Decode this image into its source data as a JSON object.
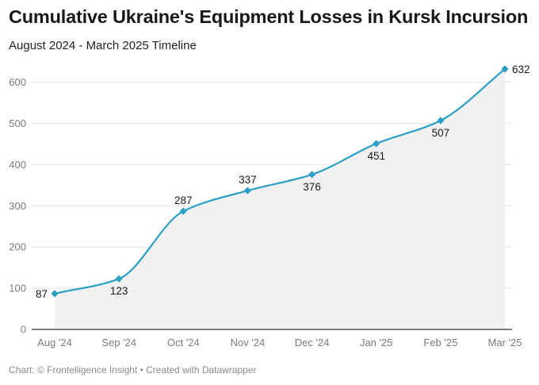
{
  "header": {
    "title": "Cumulative Ukraine's Equipment Losses in Kursk Incursion",
    "subtitle": "August 2024 - March 2025 Timeline"
  },
  "footer": {
    "credit": "Chart: © Frontelligence Insight • Created with Datawrapper"
  },
  "colors": {
    "line": "#2c9fc4",
    "area": "#f1f1f1",
    "grid": "#e4e4e4",
    "axis": "#333333"
  },
  "chart_data": {
    "type": "area",
    "title": "Cumulative Ukraine's Equipment Losses in Kursk Incursion",
    "subtitle": "August 2024 - March 2025 Timeline",
    "categories": [
      "Aug '24",
      "Sep '24",
      "Oct '24",
      "Nov '24",
      "Dec '24",
      "Jan '25",
      "Feb '25",
      "Mar '25"
    ],
    "series": [
      {
        "values": [
          87,
          123,
          287,
          337,
          376,
          451,
          507,
          632
        ]
      }
    ],
    "label_positions": [
      "left",
      "below",
      "above",
      "above",
      "below",
      "below",
      "below",
      "right"
    ],
    "ylim": [
      0,
      632
    ],
    "yticks": [
      0,
      100,
      200,
      300,
      400,
      500,
      600
    ],
    "grid": true,
    "legend": "none",
    "marker": "diamond"
  }
}
